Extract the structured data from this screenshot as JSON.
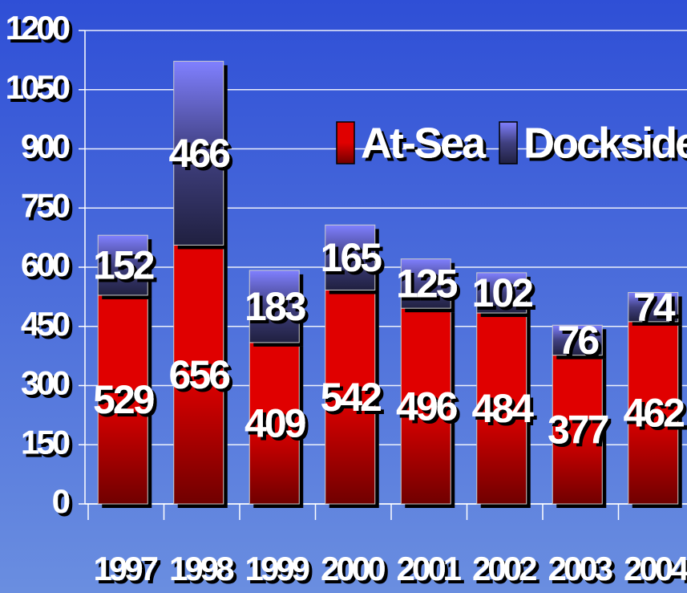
{
  "chart_data": {
    "type": "stacked_bar",
    "categories": [
      "1997",
      "1998",
      "1999",
      "2000",
      "2001",
      "2002",
      "2003",
      "2004"
    ],
    "series": [
      {
        "name": "At-Sea",
        "color": "#e00000",
        "values": [
          529,
          656,
          409,
          542,
          496,
          484,
          377,
          462
        ]
      },
      {
        "name": "Docksides",
        "color": "#8080ff",
        "values": [
          152,
          466,
          183,
          165,
          125,
          102,
          76,
          74
        ]
      }
    ],
    "ylim": [
      0,
      1200
    ],
    "yticks": [
      0,
      150,
      300,
      450,
      600,
      750,
      900,
      1050,
      1200
    ],
    "grid": true,
    "legend": "top-right"
  }
}
